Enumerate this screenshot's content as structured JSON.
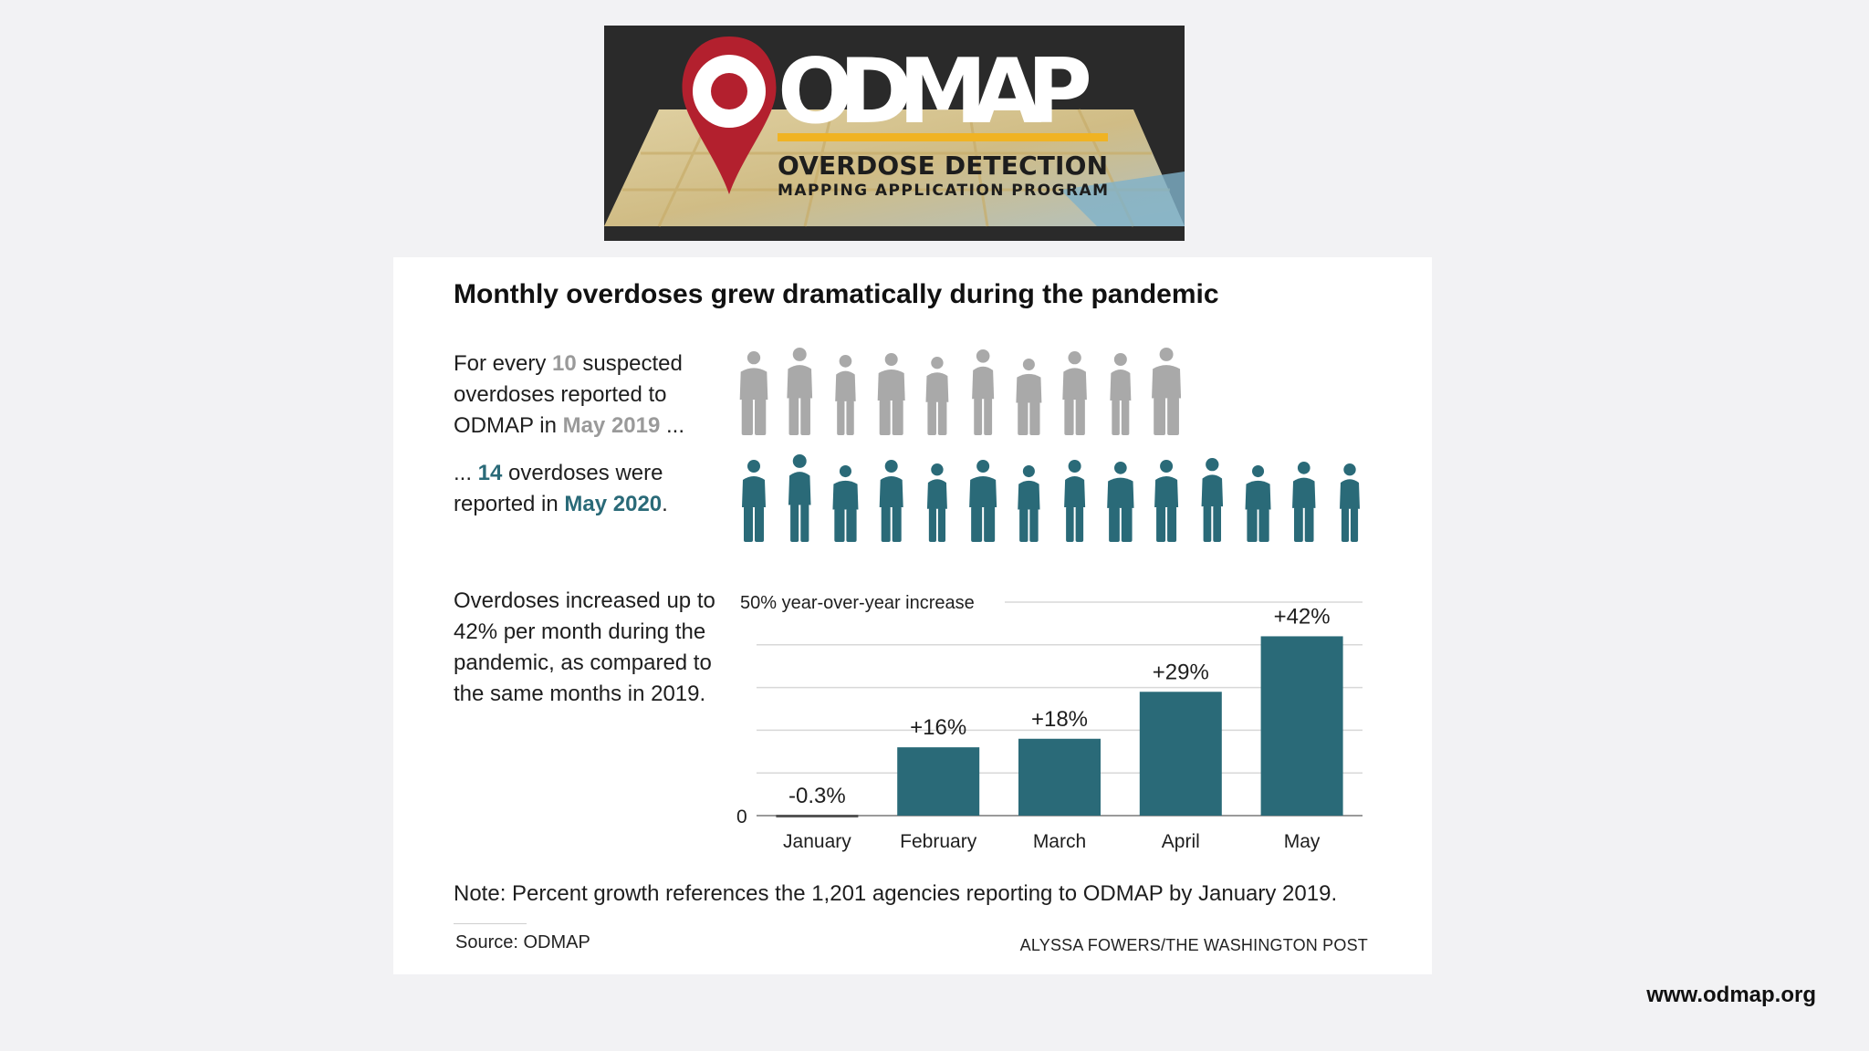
{
  "logo": {
    "wordmark": "ODMAP",
    "line1": "OVERDOSE DETECTION",
    "line2": "MAPPING APPLICATION PROGRAM",
    "pin_color": "#b3202e",
    "accent_color": "#f0b323"
  },
  "card": {
    "title": "Monthly overdoses grew dramatically during the pandemic",
    "blurb1": {
      "pre": "For every ",
      "num": "10",
      "mid": " suspected overdoses reported to ODMAP in ",
      "date": "May 2019",
      "post": " ..."
    },
    "blurb2": {
      "pre": "... ",
      "num": "14",
      "mid": " overdoses were reported in ",
      "date": "May 2020",
      "post": "."
    },
    "blurb3": "Overdoses increased up to 42% per month during the pandemic, as compared to the same months in 2019.",
    "note": "Note: Percent growth references the 1,201 agencies reporting to ODMAP by January 2019.",
    "source": "Source: ODMAP",
    "credit": "ALYSSA FOWERS/THE WASHINGTON POST"
  },
  "people": {
    "row1_count": 10,
    "row2_count": 14,
    "row1_color": "#a9a9a9",
    "row2_color": "#2a6a78"
  },
  "chart_data": {
    "type": "bar",
    "categories": [
      "January",
      "February",
      "March",
      "April",
      "May"
    ],
    "values": [
      -0.3,
      16,
      18,
      29,
      42
    ],
    "value_labels": [
      "-0.3%",
      "+16%",
      "+18%",
      "+29%",
      "+42%"
    ],
    "top_gridline_label": "50% year-over-year increase",
    "zero_label": "0",
    "ylim": [
      0,
      50
    ],
    "grid": true,
    "bar_color": "#2a6a78"
  },
  "footer": {
    "website": "www.odmap.org"
  }
}
